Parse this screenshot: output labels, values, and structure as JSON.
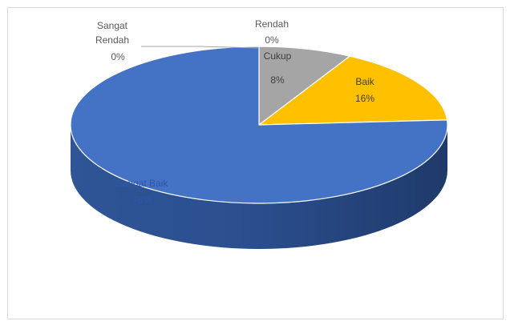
{
  "chart_data": {
    "type": "pie",
    "categories": [
      "Sangat Baik",
      "Rendah",
      "Cukup",
      "Baik",
      "Sangat Rendah"
    ],
    "values": [
      76,
      0,
      8,
      16,
      0
    ],
    "labels": [
      {
        "category": "Sangat Baik",
        "percent": "76%"
      },
      {
        "category": "Rendah",
        "percent": "0%"
      },
      {
        "category": "Cukup",
        "percent": "8%"
      },
      {
        "category": "Baik",
        "percent": "16%"
      },
      {
        "category": "Sangat Rendah",
        "percent": "0%"
      }
    ],
    "colors": {
      "Sangat Baik": "#4472C4",
      "Rendah": "#ED7D31",
      "Cukup": "#A5A5A5",
      "Baik": "#FFC000",
      "Sangat Rendah": "#5B9BD5"
    },
    "style": "3d-pie",
    "legend": "none"
  }
}
